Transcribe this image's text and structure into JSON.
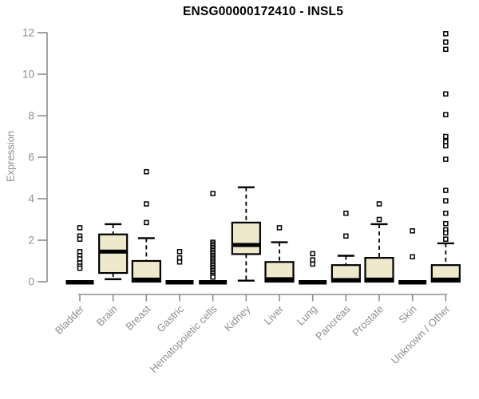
{
  "chart_data": {
    "type": "boxplot",
    "title": "ENSG00000172410 - INSL5",
    "ylabel": "Expression",
    "ylim": [
      0,
      12
    ],
    "yticks": [
      0,
      2,
      4,
      6,
      8,
      10,
      12
    ],
    "grid": false,
    "categories": [
      "Bladder",
      "Brain",
      "Breast",
      "Gastric",
      "Hematopoietic cells",
      "Kidney",
      "Liver",
      "Lung",
      "Pancreas",
      "Prostate",
      "Skin",
      "Unknown / Other"
    ],
    "boxes": [
      {
        "category": "Bladder",
        "flat": true,
        "q1": 0,
        "median": 0,
        "q3": 0,
        "whisker_low": 0,
        "whisker_high": 0,
        "outliers": [
          2.6,
          2.2,
          2.05,
          1.45,
          1.25,
          1.1,
          0.9,
          0.75,
          0.65
        ]
      },
      {
        "category": "Brain",
        "flat": false,
        "q1": 0.42,
        "median": 1.45,
        "q3": 2.28,
        "whisker_low": 0.12,
        "whisker_high": 2.77,
        "outliers": []
      },
      {
        "category": "Breast",
        "flat": false,
        "q1": 0,
        "median": 0.1,
        "q3": 1.0,
        "whisker_low": 0,
        "whisker_high": 2.1,
        "outliers": [
          5.3,
          3.75,
          2.85
        ]
      },
      {
        "category": "Gastric",
        "flat": true,
        "q1": 0,
        "median": 0,
        "q3": 0,
        "whisker_low": 0,
        "whisker_high": 0,
        "outliers": [
          1.45,
          1.15,
          0.95
        ]
      },
      {
        "category": "Hematopoietic cells",
        "flat": true,
        "q1": 0,
        "median": 0,
        "q3": 0,
        "whisker_low": 0,
        "whisker_high": 0,
        "outliers": [
          4.25,
          1.9,
          1.82,
          1.74,
          1.66,
          1.58,
          1.5,
          1.42,
          1.34,
          1.26,
          1.18,
          1.1,
          1.02,
          0.94,
          0.86,
          0.78,
          0.7,
          0.62,
          0.54,
          0.46,
          0.38,
          0.3,
          0.22
        ]
      },
      {
        "category": "Kidney",
        "flat": false,
        "q1": 1.33,
        "median": 1.77,
        "q3": 2.85,
        "whisker_low": 0.05,
        "whisker_high": 4.55,
        "outliers": []
      },
      {
        "category": "Liver",
        "flat": false,
        "q1": 0,
        "median": 0.12,
        "q3": 0.95,
        "whisker_low": 0,
        "whisker_high": 1.9,
        "outliers": [
          2.6
        ]
      },
      {
        "category": "Lung",
        "flat": true,
        "q1": 0,
        "median": 0,
        "q3": 0,
        "whisker_low": 0,
        "whisker_high": 0,
        "outliers": [
          1.35,
          1.05,
          0.85
        ]
      },
      {
        "category": "Pancreas",
        "flat": false,
        "q1": 0,
        "median": 0.08,
        "q3": 0.8,
        "whisker_low": 0,
        "whisker_high": 1.25,
        "outliers": [
          3.3,
          2.2
        ]
      },
      {
        "category": "Prostate",
        "flat": false,
        "q1": 0,
        "median": 0.1,
        "q3": 1.15,
        "whisker_low": 0,
        "whisker_high": 2.77,
        "outliers": [
          3.75,
          3.0
        ]
      },
      {
        "category": "Skin",
        "flat": true,
        "q1": 0,
        "median": 0,
        "q3": 0,
        "whisker_low": 0,
        "whisker_high": 0,
        "outliers": [
          2.45,
          1.2
        ]
      },
      {
        "category": "Unknown / Other",
        "flat": false,
        "q1": 0,
        "median": 0.1,
        "q3": 0.8,
        "whisker_low": 0,
        "whisker_high": 1.85,
        "outliers": [
          11.95,
          11.55,
          11.2,
          9.05,
          8.05,
          7.0,
          6.75,
          6.55,
          5.9,
          4.4,
          3.9,
          3.3,
          2.8,
          2.5,
          2.35,
          2.05
        ]
      }
    ],
    "colors": {
      "box_fill": "#EEE8CD",
      "box_stroke": "#000000",
      "median": "#000000",
      "whisker": "#000000",
      "outlier_stroke": "#000000",
      "axis": "#8e8e8e",
      "tick_label": "#8e8e8e",
      "title": "#000000",
      "background": "#ffffff"
    }
  }
}
